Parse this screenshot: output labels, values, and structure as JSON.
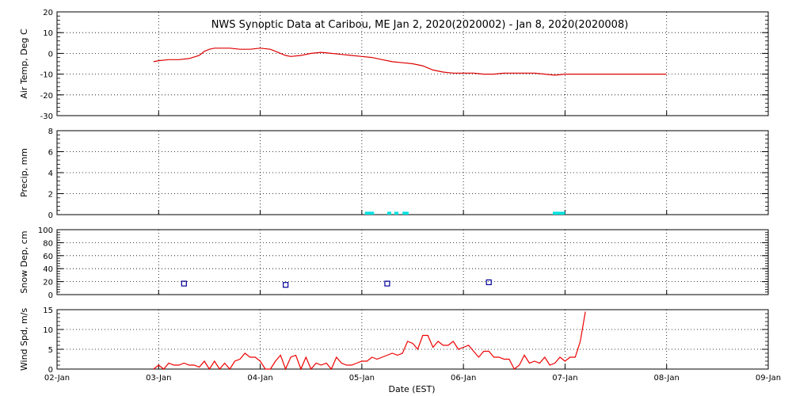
{
  "title": "NWS Synoptic Data at Caribou, ME   Jan  2, 2020(2020002) - Jan  8, 2020(2020008)",
  "xlabel": "Date (EST)",
  "x_ticks": [
    "02-Jan",
    "03-Jan",
    "04-Jan",
    "05-Jan",
    "06-Jan",
    "07-Jan",
    "08-Jan",
    "09-Jan"
  ],
  "colors": {
    "temp": "#dd0000",
    "precip": "#00e0e0",
    "snow": "#000099",
    "wind": "#ee0000",
    "grid": "#000000"
  },
  "chart_data": [
    {
      "type": "line",
      "ylabel": "Air Temp, Deg C",
      "ylim": [
        -30,
        20
      ],
      "yticks": [
        20,
        10,
        0,
        -10,
        -20,
        -30
      ],
      "xlim": [
        0,
        7
      ],
      "grid": true,
      "series": [
        {
          "x": [
            0.95,
            1.0,
            1.1,
            1.2,
            1.3,
            1.4,
            1.45,
            1.5,
            1.55,
            1.6,
            1.7,
            1.8,
            1.9,
            2.0,
            2.1,
            2.2,
            2.25,
            2.3,
            2.4,
            2.5,
            2.6,
            2.7,
            2.8,
            2.9,
            3.0,
            3.1,
            3.2,
            3.3,
            3.4,
            3.5,
            3.6,
            3.7,
            3.8,
            3.9,
            4.0,
            4.1,
            4.2,
            4.3,
            4.4,
            4.5,
            4.6,
            4.7,
            4.8,
            4.9,
            5.0,
            5.1,
            5.2,
            5.3,
            5.5,
            6.0
          ],
          "y": [
            -4,
            -3.5,
            -3,
            -3,
            -2.5,
            -1,
            1,
            2,
            2.5,
            2.5,
            2.5,
            2,
            2,
            2.5,
            2,
            0,
            -1,
            -1.5,
            -1,
            0,
            0.5,
            0,
            -0.5,
            -1,
            -1.5,
            -2,
            -3,
            -4,
            -4.5,
            -5,
            -6,
            -8,
            -9,
            -9.5,
            -9.5,
            -9.5,
            -10,
            -10,
            -9.5,
            -9.5,
            -9.5,
            -9.5,
            -10,
            -10.5,
            -10,
            -10,
            -10,
            -10,
            -10,
            -10
          ]
        }
      ]
    },
    {
      "type": "bar",
      "ylabel": "Precip, mm",
      "ylim": [
        0,
        8
      ],
      "yticks": [
        8,
        6,
        4,
        2,
        0
      ],
      "xlim": [
        0,
        7
      ],
      "grid": true,
      "bars": [
        {
          "x0": 3.03,
          "x1": 3.12,
          "value": 0.2
        },
        {
          "x0": 3.25,
          "x1": 3.29,
          "value": 0.2
        },
        {
          "x0": 3.32,
          "x1": 3.36,
          "value": 0.2
        },
        {
          "x0": 3.4,
          "x1": 3.46,
          "value": 0.2
        },
        {
          "x0": 4.88,
          "x1": 5.0,
          "value": 0.2
        }
      ]
    },
    {
      "type": "scatter",
      "ylabel": "Snow Dep, cm",
      "ylim": [
        0,
        100
      ],
      "yticks": [
        100,
        80,
        60,
        40,
        20,
        0
      ],
      "xlim": [
        0,
        7
      ],
      "grid": true,
      "series": [
        {
          "x": [
            1.25,
            2.25,
            3.25,
            4.25
          ],
          "y": [
            17,
            15,
            17,
            19
          ]
        }
      ]
    },
    {
      "type": "line",
      "ylabel": "Wind Spd, m/s",
      "ylim": [
        0,
        15
      ],
      "yticks": [
        15,
        10,
        5,
        0
      ],
      "xlim": [
        0,
        7
      ],
      "grid": true,
      "series": [
        {
          "x": [
            0.95,
            1.0,
            1.05,
            1.1,
            1.15,
            1.2,
            1.25,
            1.3,
            1.35,
            1.4,
            1.45,
            1.5,
            1.55,
            1.6,
            1.65,
            1.7,
            1.75,
            1.8,
            1.85,
            1.9,
            1.95,
            2.0,
            2.05,
            2.1,
            2.15,
            2.2,
            2.25,
            2.3,
            2.35,
            2.4,
            2.45,
            2.5,
            2.55,
            2.6,
            2.65,
            2.7,
            2.75,
            2.8,
            2.85,
            2.9,
            2.95,
            3.0,
            3.05,
            3.1,
            3.15,
            3.2,
            3.25,
            3.3,
            3.35,
            3.4,
            3.45,
            3.5,
            3.55,
            3.6,
            3.65,
            3.7,
            3.75,
            3.8,
            3.85,
            3.9,
            3.95,
            4.0,
            4.05,
            4.1,
            4.15,
            4.2,
            4.25,
            4.3,
            4.35,
            4.4,
            4.45,
            4.5,
            4.55,
            4.6,
            4.65,
            4.7,
            4.75,
            4.8,
            4.85,
            4.9,
            4.95,
            5.0,
            5.05,
            5.1,
            5.15,
            5.2
          ],
          "y": [
            0,
            1,
            0,
            1.5,
            1,
            1,
            1.5,
            1,
            1,
            0.5,
            2,
            0,
            2,
            0,
            1.5,
            0,
            2,
            2.5,
            4,
            3,
            3,
            2,
            0,
            0,
            2,
            3.5,
            0,
            3,
            3.5,
            0,
            3,
            0,
            1.5,
            1,
            1.5,
            0,
            3,
            1.5,
            1,
            1,
            1.5,
            2,
            2,
            3,
            2.5,
            3,
            3.5,
            4,
            3.5,
            4,
            7,
            6.5,
            5,
            8.5,
            8.5,
            5.5,
            7,
            6,
            6,
            7,
            5,
            5.5,
            6,
            4.5,
            3,
            4.5,
            4.5,
            3,
            3,
            2.5,
            2.5,
            0,
            1,
            3.5,
            1.5,
            2,
            1.5,
            3,
            1,
            1.5,
            3,
            2,
            3,
            3,
            7,
            14.5
          ]
        }
      ]
    }
  ]
}
